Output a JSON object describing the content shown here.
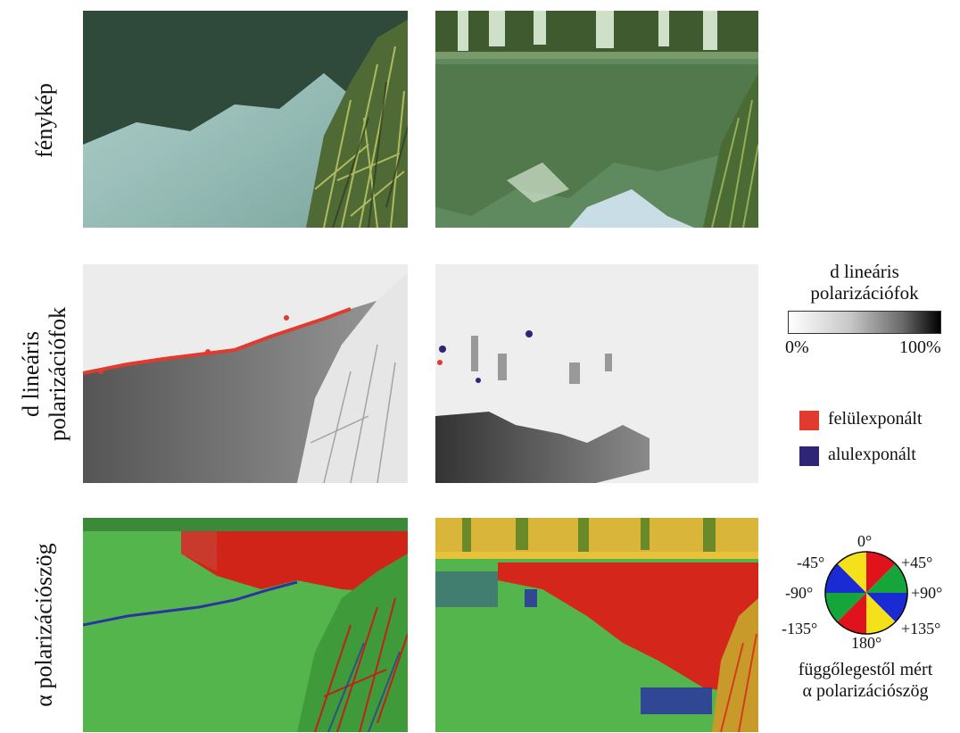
{
  "rows": {
    "photo": "fénykép",
    "dop_line1": "d lineáris",
    "dop_line2": "polarizációfok",
    "aop": "α polarizációszög"
  },
  "legend": {
    "dop_title_line1": "d lineáris",
    "dop_title_line2": "polarizációfok",
    "dop_min": "0%",
    "dop_max": "100%",
    "overexposed": "felülexponált",
    "underexposed": "alulexponált",
    "overexposed_color": "#e03b2e",
    "underexposed_color": "#2e2577",
    "angles": {
      "top": "0°",
      "top_left": "-45°",
      "top_right": "+45°",
      "left": "-90°",
      "right": "+90°",
      "bottom_left": "-135°",
      "bottom": "180°",
      "bottom_right": "+135°"
    },
    "aop_caption_line1": "függőlegestől mért",
    "aop_caption_line2": "α polarizációszög",
    "wheel_colors": {
      "red": "#e0121b",
      "yellow": "#f4e11a",
      "green": "#16a53a",
      "blue": "#1b2bd4"
    }
  }
}
